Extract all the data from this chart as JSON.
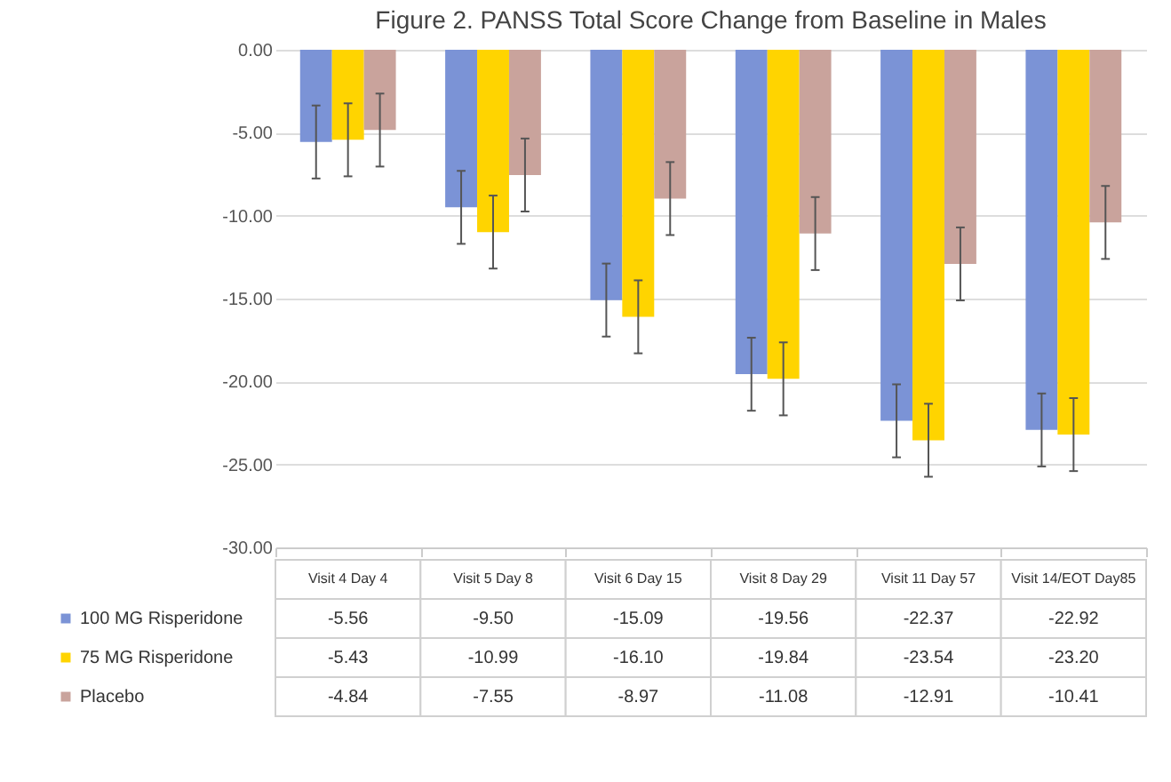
{
  "chart_data": {
    "type": "bar",
    "title": "Figure 2. PANSS Total Score  Change from Baseline in Males",
    "categories": [
      "Visit 4 Day 4",
      "Visit 5 Day 8",
      "Visit 6 Day 15",
      "Visit 8 Day 29",
      "Visit 11 Day 57",
      "Visit 14/EOT Day85"
    ],
    "series": [
      {
        "name": "100 MG Risperidone",
        "color": "#7b93d6",
        "values": [
          -5.56,
          -9.5,
          -15.09,
          -19.56,
          -22.37,
          -22.92
        ],
        "value_labels": [
          "-5.56",
          "-9.50",
          "-15.09",
          "-19.56",
          "-22.37",
          "-22.92"
        ],
        "errors": [
          2.2,
          2.2,
          2.2,
          2.2,
          2.2,
          2.2
        ]
      },
      {
        "name": "75 MG Risperidone",
        "color": "#ffd400",
        "values": [
          -5.43,
          -10.99,
          -16.1,
          -19.84,
          -23.54,
          -23.2
        ],
        "value_labels": [
          "-5.43",
          "-10.99",
          "-16.10",
          "-19.84",
          "-23.54",
          "-23.20"
        ],
        "errors": [
          2.2,
          2.2,
          2.2,
          2.2,
          2.2,
          2.2
        ]
      },
      {
        "name": "Placebo",
        "color": "#c9a39c",
        "values": [
          -4.84,
          -7.55,
          -8.97,
          -11.08,
          -12.91,
          -10.41
        ],
        "value_labels": [
          "-4.84",
          "-7.55",
          "-8.97",
          "-11.08",
          "-12.91",
          "-10.41"
        ],
        "errors": [
          2.2,
          2.2,
          2.2,
          2.2,
          2.2,
          2.2
        ]
      }
    ],
    "ylim": [
      -30,
      0
    ],
    "yticks": [
      {
        "value": 0,
        "label": "0.00"
      },
      {
        "value": -5,
        "label": "-5.00"
      },
      {
        "value": -10,
        "label": "-10.00"
      },
      {
        "value": -15,
        "label": "-15.00"
      },
      {
        "value": -20,
        "label": "-20.00"
      },
      {
        "value": -25,
        "label": "-25.00"
      },
      {
        "value": -30,
        "label": "-30.00"
      }
    ],
    "grid": "y",
    "legend": "bottom"
  }
}
